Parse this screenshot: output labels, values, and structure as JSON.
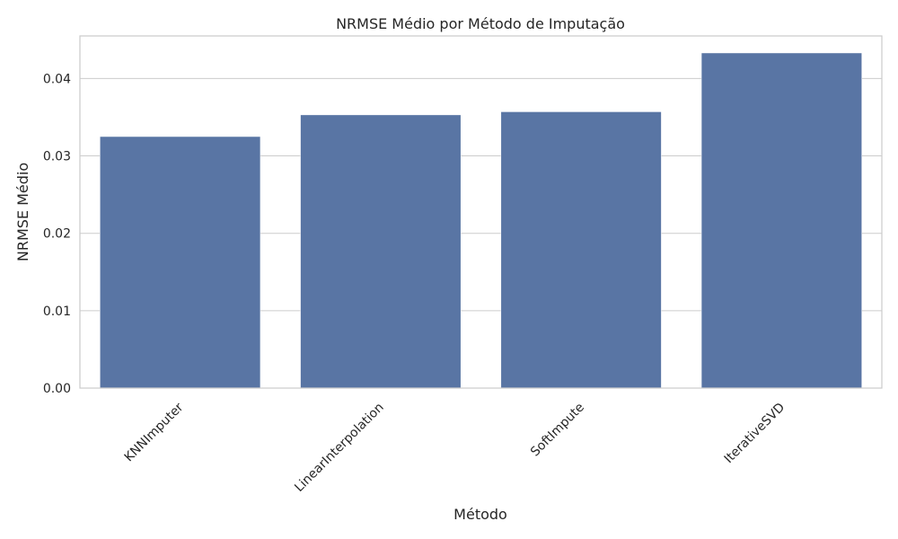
{
  "chart_data": {
    "type": "bar",
    "title": "NRMSE Médio por Método de Imputação",
    "xlabel": "Método",
    "ylabel": "NRMSE Médio",
    "categories": [
      "KNNImputer",
      "LinearInterpolation",
      "SoftImpute",
      "IterativeSVD"
    ],
    "values": [
      0.0325,
      0.0353,
      0.0357,
      0.0433
    ],
    "ylim": [
      0,
      0.0455
    ],
    "yticks": [
      0.0,
      0.01,
      0.02,
      0.03,
      0.04
    ],
    "ytick_labels": [
      "0.00",
      "0.01",
      "0.02",
      "0.03",
      "0.04"
    ],
    "grid": "horizontal",
    "bar_color": "#5975a4",
    "xtick_rotation": "45"
  }
}
